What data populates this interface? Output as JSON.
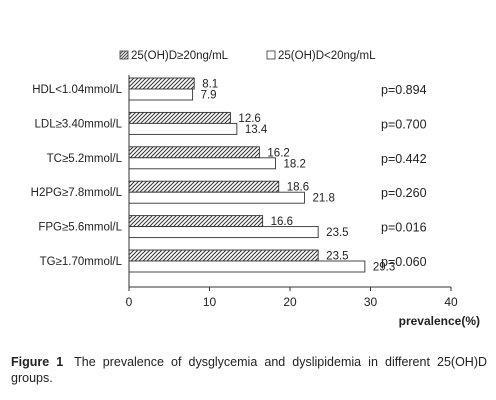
{
  "chart_data": {
    "type": "bar",
    "orientation": "horizontal",
    "categories": [
      "HDL<1.04mmol/L",
      "LDL≥3.40mmol/L",
      "TC≥5.2mmol/L",
      "H2PG≥7.8mmol/L",
      "FPG≥5.6mmol/L",
      "TG≥1.70mmol/L"
    ],
    "series": [
      {
        "name": "25(OH)D≥20ng/mL",
        "values": [
          8.1,
          12.6,
          16.2,
          18.6,
          16.6,
          23.5
        ],
        "labels": [
          "8.1",
          "12.6",
          "16.2",
          "18.6",
          "16.6",
          "23.5"
        ],
        "pattern": "hatched"
      },
      {
        "name": "25(OH)D<20ng/mL",
        "values": [
          7.9,
          13.4,
          18.2,
          21.8,
          23.5,
          29.3
        ],
        "labels": [
          "7.9",
          "13.4",
          "18.2",
          "21.8",
          "23.5",
          "29.3"
        ],
        "pattern": "white"
      }
    ],
    "annotations": [
      "p=0.894",
      "p=0.700",
      "p=0.442",
      "p=0.260",
      "p=0.016",
      "p=0.060"
    ],
    "xlabel": "prevalence(%)",
    "xlim": [
      0,
      40
    ],
    "xticks": [
      "0",
      "10",
      "20",
      "30",
      "40"
    ],
    "grid": false,
    "legend_position": "top"
  },
  "caption": {
    "figure_label": "Figure 1",
    "text": "The prevalence of dysglycemia and dyslipidemia in different 25(OH)D groups."
  }
}
